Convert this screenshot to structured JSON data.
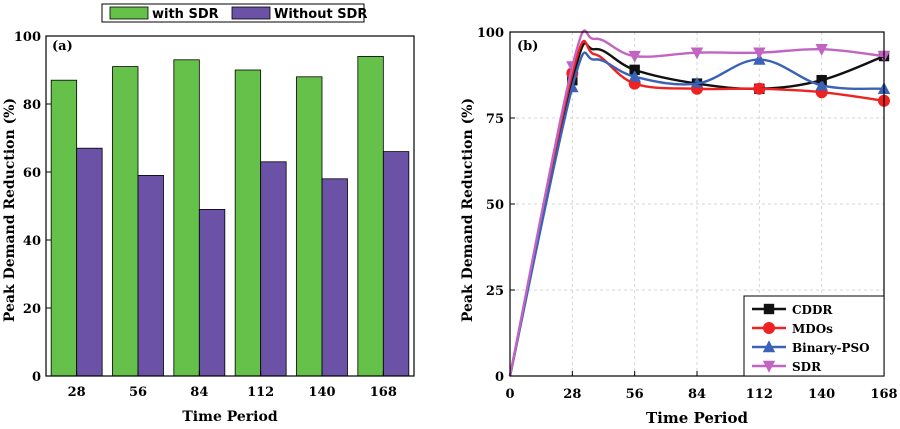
{
  "chart_data": [
    {
      "type": "bar",
      "panel_label": "(a)",
      "categories": [
        "28",
        "56",
        "84",
        "112",
        "140",
        "168"
      ],
      "series": [
        {
          "name": "with SDR",
          "color": "#66c14a",
          "values": [
            87,
            91,
            93,
            90,
            88,
            94
          ]
        },
        {
          "name": "Without SDR",
          "color": "#6b52a6",
          "values": [
            67,
            59,
            49,
            63,
            58,
            66
          ]
        }
      ],
      "xlabel": "Time Period",
      "ylabel": "Peak Demand Reduction (%)",
      "ylim": [
        0,
        100
      ],
      "yticks": [
        "0",
        "20",
        "40",
        "60",
        "80",
        "100"
      ],
      "legend_position": "top-center"
    },
    {
      "type": "line",
      "panel_label": "(b)",
      "x": [
        0,
        28,
        56,
        84,
        112,
        140,
        168
      ],
      "xticks": [
        "0",
        "28",
        "56",
        "84",
        "112",
        "140",
        "168"
      ],
      "series": [
        {
          "name": "CDDR",
          "color": "#111111",
          "marker": "square",
          "values": [
            0,
            86,
            89,
            85,
            83.5,
            86,
            93
          ],
          "peak": [
            38,
            95
          ]
        },
        {
          "name": "MDOs",
          "color": "#ee2222",
          "marker": "circle",
          "values": [
            0,
            88,
            85,
            83.5,
            83.5,
            82.5,
            80
          ],
          "peak": [
            38,
            93.5
          ]
        },
        {
          "name": "Binary-PSO",
          "color": "#3a62b6",
          "marker": "triangle",
          "values": [
            0,
            84,
            87,
            85,
            92,
            84.5,
            83.5
          ],
          "peak": [
            38,
            92
          ]
        },
        {
          "name": "SDR",
          "color": "#c265c2",
          "marker": "triangle-down",
          "values": [
            0,
            90,
            93,
            94,
            94,
            95,
            93
          ],
          "peak": [
            38,
            98
          ]
        }
      ],
      "xlabel": "Time Period",
      "ylabel": "Peak Demand Reduction (%)",
      "ylim": [
        0,
        100
      ],
      "xlim": [
        0,
        168
      ],
      "yticks": [
        "0",
        "25",
        "50",
        "75",
        "100"
      ],
      "grid": true,
      "legend_position": "bottom-right"
    }
  ]
}
